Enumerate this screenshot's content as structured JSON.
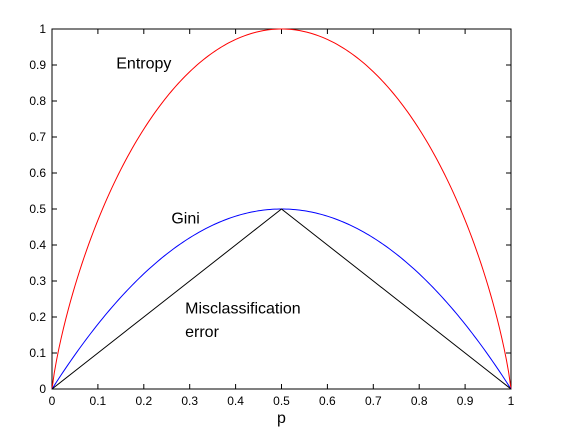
{
  "chart_data": {
    "type": "line",
    "title": "",
    "xlabel": "p",
    "ylabel": "",
    "xlim": [
      0,
      1
    ],
    "ylim": [
      0,
      1
    ],
    "grid": false,
    "x_ticks": [
      "0",
      "0.1",
      "0.2",
      "0.3",
      "0.4",
      "0.5",
      "0.6",
      "0.7",
      "0.8",
      "0.9",
      "1"
    ],
    "y_ticks": [
      "0",
      "0.1",
      "0.2",
      "0.3",
      "0.4",
      "0.5",
      "0.6",
      "0.7",
      "0.8",
      "0.9",
      "1"
    ],
    "x": [
      0,
      0.05,
      0.1,
      0.15,
      0.2,
      0.25,
      0.3,
      0.35,
      0.4,
      0.45,
      0.5,
      0.55,
      0.6,
      0.65,
      0.7,
      0.75,
      0.8,
      0.85,
      0.9,
      0.95,
      1
    ],
    "series": [
      {
        "color": "#ff0000",
        "values": [
          0,
          0.286,
          0.469,
          0.61,
          0.722,
          0.811,
          0.881,
          0.934,
          0.971,
          0.993,
          1,
          0.993,
          0.971,
          0.934,
          0.881,
          0.811,
          0.722,
          0.61,
          0.469,
          0.286,
          0
        ]
      },
      {
        "color": "#0000ff",
        "values": [
          0,
          0.095,
          0.18,
          0.255,
          0.32,
          0.375,
          0.42,
          0.455,
          0.48,
          0.495,
          0.5,
          0.495,
          0.48,
          0.455,
          0.42,
          0.375,
          0.32,
          0.255,
          0.18,
          0.095,
          0
        ]
      },
      {
        "color": "#000000",
        "values": [
          0,
          0.05,
          0.1,
          0.15,
          0.2,
          0.25,
          0.3,
          0.35,
          0.4,
          0.45,
          0.5,
          0.45,
          0.4,
          0.35,
          0.3,
          0.25,
          0.2,
          0.15,
          0.1,
          0.05,
          0
        ]
      }
    ],
    "annotations": [
      {
        "text": "Entropy",
        "x": 0.14,
        "y": 0.89
      },
      {
        "text": "Gini",
        "x": 0.26,
        "y": 0.46
      },
      {
        "text": "Misclassification",
        "x": 0.29,
        "y": 0.21
      },
      {
        "text": "error",
        "x": 0.29,
        "y": 0.145
      }
    ]
  }
}
